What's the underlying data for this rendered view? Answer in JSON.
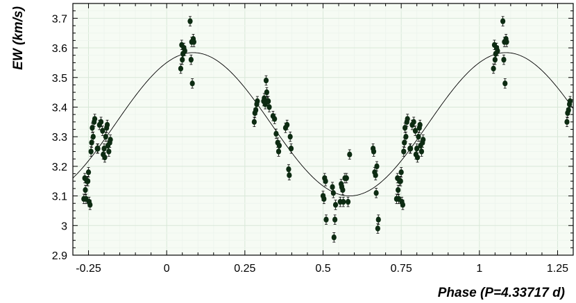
{
  "chart_data": {
    "type": "scatter",
    "title": "",
    "xlabel": "Phase (P=4.33717 d)",
    "ylabel": "EW (km/s)",
    "xlim": [
      -0.3,
      1.3
    ],
    "ylim": [
      2.9,
      3.75
    ],
    "x_ticks": [
      -0.25,
      0,
      0.25,
      0.5,
      0.75,
      1,
      1.25
    ],
    "x_tick_labels": [
      "-0.25",
      "0",
      "0.25",
      "0.5",
      "0.75",
      "1",
      "1.25"
    ],
    "y_ticks": [
      2.9,
      3.0,
      3.1,
      3.2,
      3.3,
      3.4,
      3.5,
      3.6,
      3.7
    ],
    "y_tick_labels": [
      "2.9",
      "3",
      "3.1",
      "3.2",
      "3.3",
      "3.4",
      "3.5",
      "3.6",
      "3.7"
    ],
    "grid": true,
    "plot_background": "#f6fbf4",
    "point_color": "#0d2b12",
    "fit": {
      "type": "sinusoid",
      "mean": 3.342,
      "amplitude": 0.242,
      "phase_of_max": 0.085,
      "color": "#000000"
    },
    "series": [
      {
        "x": [
          -0.265,
          -0.262,
          -0.26,
          -0.258,
          -0.255,
          -0.252,
          -0.25,
          -0.248,
          -0.245,
          -0.242,
          -0.24,
          -0.238,
          -0.235,
          -0.232,
          -0.23,
          -0.222,
          -0.22,
          -0.215,
          -0.21,
          -0.205,
          -0.203,
          -0.2,
          -0.198,
          -0.195,
          -0.192,
          -0.19,
          -0.188,
          -0.185,
          -0.182,
          -0.18,
          0.045,
          0.048,
          0.05,
          0.052,
          0.055,
          0.058,
          0.075,
          0.078,
          0.08,
          0.082,
          0.085,
          0.087,
          0.28,
          0.282,
          0.285,
          0.288,
          0.29,
          0.31,
          0.312,
          0.315,
          0.318,
          0.32,
          0.322,
          0.325,
          0.328,
          0.34,
          0.345,
          0.35,
          0.355,
          0.358,
          0.36,
          0.38,
          0.385,
          0.39,
          0.392,
          0.395,
          0.398,
          0.5,
          0.503,
          0.505,
          0.508,
          0.51,
          0.53,
          0.533,
          0.535,
          0.538,
          0.54,
          0.555,
          0.558,
          0.56,
          0.563,
          0.565,
          0.57,
          0.575,
          0.58,
          0.585,
          0.66,
          0.662,
          0.665,
          0.668,
          0.67,
          0.672,
          0.675,
          0.677,
          0.735,
          0.738,
          0.74,
          0.742,
          0.745,
          0.748,
          0.75,
          0.752,
          0.755,
          0.758,
          0.76,
          0.762,
          0.765,
          0.768,
          0.77,
          0.778,
          0.78,
          0.785,
          0.79,
          0.795,
          0.797,
          0.8,
          0.802,
          0.805,
          0.808,
          0.81,
          0.812,
          0.815,
          0.818,
          0.82,
          1.045,
          1.048,
          1.05,
          1.052,
          1.055,
          1.058,
          1.075,
          1.078,
          1.08,
          1.082,
          1.085,
          1.087,
          1.28,
          1.282,
          1.285,
          1.288,
          1.29
        ],
        "y": [
          3.09,
          3.16,
          3.12,
          3.09,
          3.15,
          3.15,
          3.18,
          3.08,
          3.07,
          3.25,
          3.28,
          3.33,
          3.3,
          3.35,
          3.36,
          3.26,
          3.26,
          3.34,
          3.35,
          3.32,
          3.24,
          3.26,
          3.23,
          3.3,
          3.33,
          3.34,
          3.27,
          3.25,
          3.28,
          3.29,
          3.53,
          3.61,
          3.56,
          3.58,
          3.6,
          3.59,
          3.69,
          3.56,
          3.62,
          3.48,
          3.63,
          3.62,
          3.35,
          3.38,
          3.39,
          3.41,
          3.42,
          3.42,
          3.43,
          3.41,
          3.49,
          3.45,
          3.42,
          3.42,
          3.4,
          3.37,
          3.36,
          3.31,
          3.28,
          3.25,
          3.27,
          3.33,
          3.34,
          3.19,
          3.17,
          3.3,
          3.26,
          3.1,
          3.09,
          3.16,
          3.15,
          3.02,
          3.13,
          3.11,
          2.96,
          3.02,
          3.07,
          3.08,
          3.14,
          3.13,
          3.12,
          3.08,
          3.16,
          3.16,
          3.08,
          3.24,
          3.26,
          3.25,
          3.18,
          3.17,
          3.11,
          3.2,
          2.99,
          3.02,
          3.09,
          3.16,
          3.12,
          3.09,
          3.15,
          3.15,
          3.18,
          3.08,
          3.07,
          3.25,
          3.28,
          3.33,
          3.3,
          3.35,
          3.36,
          3.26,
          3.26,
          3.34,
          3.35,
          3.32,
          3.24,
          3.26,
          3.23,
          3.3,
          3.33,
          3.34,
          3.27,
          3.25,
          3.28,
          3.29,
          3.53,
          3.61,
          3.56,
          3.58,
          3.6,
          3.59,
          3.69,
          3.56,
          3.62,
          3.48,
          3.63,
          3.62,
          3.35,
          3.38,
          3.39,
          3.41,
          3.42
        ],
        "yerr": 0.016
      }
    ]
  }
}
